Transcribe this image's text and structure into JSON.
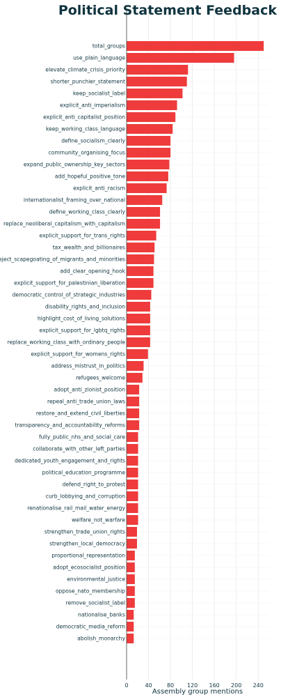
{
  "chart_data": {
    "type": "bar",
    "orientation": "horizontal",
    "title": "Political Statement Feedback",
    "xlabel": "Assembly group mentions",
    "ylabel": "",
    "xlim": [
      0,
      260
    ],
    "xticks": [
      "0",
      "40",
      "80",
      "120",
      "160",
      "200",
      "240"
    ],
    "grid": true,
    "bar_color": "#ef3b3b",
    "text_color": "#10343f",
    "categories": [
      "total_groups",
      "use_plain_language",
      "elevate_climate_crisis_priority",
      "shorter_punchier_statement",
      "keep_socialist_label",
      "explicit_anti_imperialism",
      "explicit_anti_capitalist_position",
      "keep_working_class_language",
      "define_socialism_clearly",
      "community_organising_focus",
      "expand_public_ownership_key_sectors",
      "add_hopeful_positive_tone",
      "explicit_anti_racism",
      "internationalist_framing_over_national",
      "define_working_class_clearly",
      "replace_neoliberal_capitalism_with_capitalism",
      "explicit_support_for_trans_rights",
      "tax_wealth_and_billionaires",
      "reject_scapegoating_of_migrants_and_minorities",
      "add_clear_opening_hook",
      "explicit_support_for_palestinian_liberation",
      "democratic_control_of_strategic_industries",
      "disability_rights_and_inclusion",
      "highlight_cost_of_living_solutions",
      "explicit_support_for_lgbtq_rights",
      "replace_working_class_with_ordinary_people",
      "explicit_support_for_womens_rights",
      "address_mistrust_in_politics",
      "refugees_welcome",
      "adopt_anti_zionist_position",
      "repeal_anti_trade_union_laws",
      "restore_and_extend_civil_liberties",
      "transparency_and_accountability_reforms",
      "fully_public_nhs_and_social_care",
      "collaborate_with_other_left_parties",
      "dedicated_youth_engagement_and_rights",
      "political_education_programme",
      "defend_right_to_protest",
      "curb_lobbying_and_corruption",
      "renationalise_rail_mail_water_energy",
      "welfare_not_warfare",
      "strengthen_trade_union_rights",
      "strengthen_local_democracy",
      "proportional_representation",
      "adopt_ecosocialist_position",
      "environmental_justice",
      "oppose_nato_membership",
      "remove_socialist_label",
      "nationalise_banks",
      "democratic_media_reform",
      "abolish_monarchy"
    ],
    "values": [
      250,
      196,
      112,
      110,
      102,
      92,
      89,
      84,
      80,
      80,
      78,
      76,
      73,
      65,
      61,
      61,
      54,
      51,
      50,
      49,
      49,
      45,
      43,
      43,
      43,
      43,
      39,
      31,
      29,
      23,
      23,
      23,
      23,
      21,
      21,
      21,
      21,
      21,
      21,
      21,
      21,
      19,
      19,
      15,
      15,
      15,
      15,
      15,
      13,
      13,
      13
    ]
  }
}
